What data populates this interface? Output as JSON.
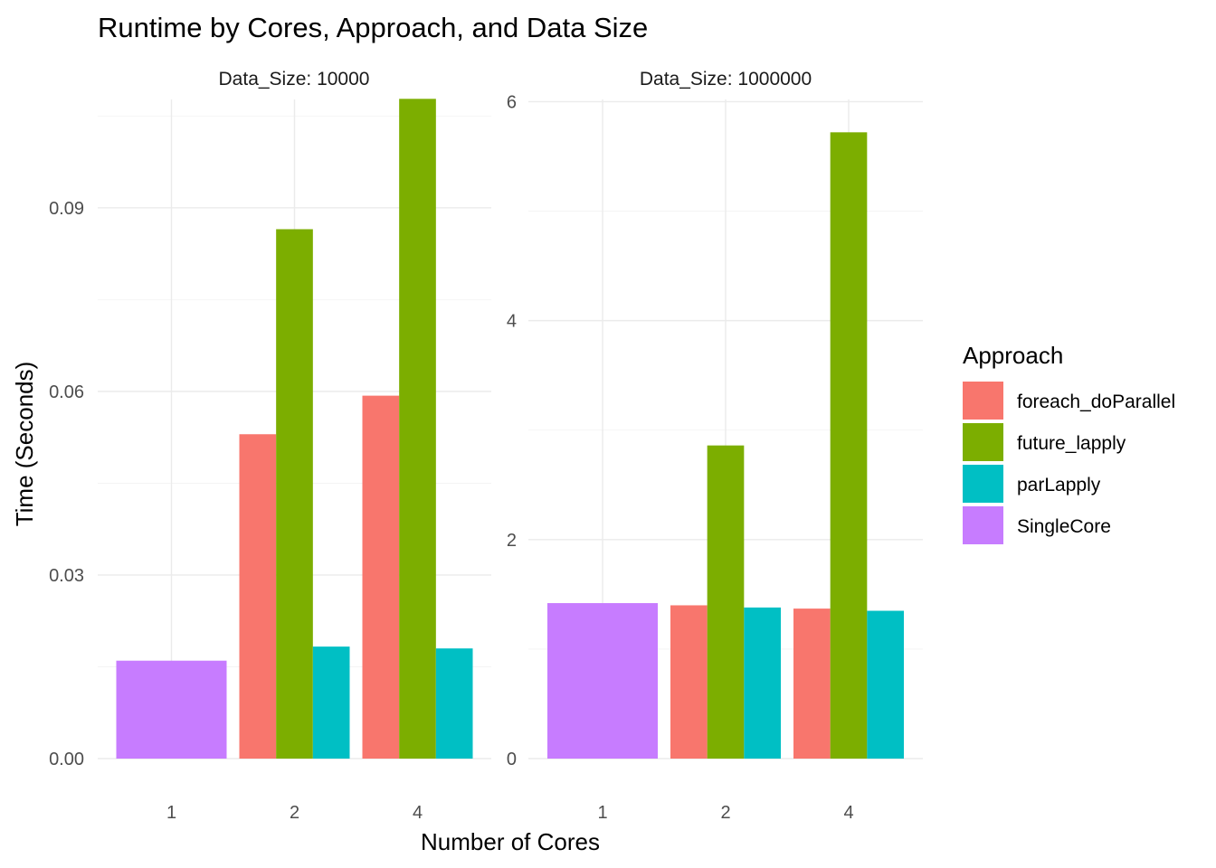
{
  "chart_data": {
    "type": "bar",
    "title": "Runtime by Cores, Approach, and Data Size",
    "xlabel": "Number of Cores",
    "ylabel": "Time (Seconds)",
    "legend": {
      "title": "Approach",
      "position": "right",
      "entries": [
        {
          "name": "foreach_doParallel",
          "color": "#F8766D"
        },
        {
          "name": "future_lapply",
          "color": "#7CAE00"
        },
        {
          "name": "parLapply",
          "color": "#00BFC4"
        },
        {
          "name": "SingleCore",
          "color": "#C77CFF"
        }
      ]
    },
    "grid": true,
    "facets": [
      {
        "label": "Data_Size: 10000",
        "categories": [
          "1",
          "2",
          "4"
        ],
        "ylim": [
          0,
          0.107
        ],
        "yticks": [
          0,
          0.03,
          0.06,
          0.09
        ],
        "ytick_labels": [
          "0.00",
          "0.03",
          "0.06",
          "0.09"
        ],
        "ytick_minor": [
          0.015,
          0.045,
          0.075,
          0.105
        ],
        "groups": [
          {
            "category": "1",
            "bars": [
              {
                "series": "SingleCore",
                "value": 0.016
              }
            ]
          },
          {
            "category": "2",
            "bars": [
              {
                "series": "foreach_doParallel",
                "value": 0.053
              },
              {
                "series": "future_lapply",
                "value": 0.0865
              },
              {
                "series": "parLapply",
                "value": 0.0183
              }
            ]
          },
          {
            "category": "4",
            "bars": [
              {
                "series": "foreach_doParallel",
                "value": 0.0593
              },
              {
                "series": "future_lapply",
                "value": 0.1078
              },
              {
                "series": "parLapply",
                "value": 0.018
              }
            ]
          }
        ]
      },
      {
        "label": "Data_Size: 1000000",
        "categories": [
          "1",
          "2",
          "4"
        ],
        "ylim": [
          0,
          5.72
        ],
        "yticks": [
          0,
          2,
          4,
          6
        ],
        "ytick_labels": [
          "0",
          "2",
          "4",
          "6"
        ],
        "ytick_minor": [
          1,
          3,
          5
        ],
        "groups": [
          {
            "category": "1",
            "bars": [
              {
                "series": "SingleCore",
                "value": 1.42
              }
            ]
          },
          {
            "category": "2",
            "bars": [
              {
                "series": "foreach_doParallel",
                "value": 1.4
              },
              {
                "series": "future_lapply",
                "value": 2.86
              },
              {
                "series": "parLapply",
                "value": 1.38
              }
            ]
          },
          {
            "category": "4",
            "bars": [
              {
                "series": "foreach_doParallel",
                "value": 1.37
              },
              {
                "series": "future_lapply",
                "value": 5.72
              },
              {
                "series": "parLapply",
                "value": 1.35
              }
            ]
          }
        ]
      }
    ]
  }
}
